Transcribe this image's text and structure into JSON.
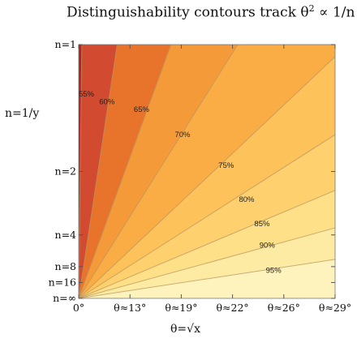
{
  "chart_data": {
    "type": "contour",
    "title_main": "Distinguishability contours track θ",
    "title_sup": "2",
    "title_tail": " ∝ 1/n",
    "xlabel": "θ=√x",
    "ylabel": "n=1/y",
    "x_ticks": [
      {
        "value": 0.0,
        "label": "0°"
      },
      {
        "value": 0.2,
        "label": "θ≈13°"
      },
      {
        "value": 0.4,
        "label": "θ≈19°"
      },
      {
        "value": 0.6,
        "label": "θ≈22°"
      },
      {
        "value": 0.8,
        "label": "θ≈26°"
      },
      {
        "value": 1.0,
        "label": "θ≈29°"
      }
    ],
    "y_ticks": [
      {
        "value": 1.0,
        "label": "n=1"
      },
      {
        "value": 0.5,
        "label": "n=2"
      },
      {
        "value": 0.25,
        "label": "n=4"
      },
      {
        "value": 0.125,
        "label": "n=8"
      },
      {
        "value": 0.0625,
        "label": "n=16"
      },
      {
        "value": 0.0,
        "label": "n=∞"
      }
    ],
    "xlim": [
      0,
      1
    ],
    "ylim": [
      0,
      1
    ],
    "contour_levels": [
      {
        "level": "55%",
        "ratio": 0.012,
        "color": "#d24a30"
      },
      {
        "level": "60%",
        "ratio": 0.15,
        "color": "#e8742c"
      },
      {
        "level": "65%",
        "ratio": 0.36,
        "color": "#f59a38"
      },
      {
        "level": "70%",
        "ratio": 0.62,
        "color": "#fbad45"
      },
      {
        "level": "75%",
        "ratio": 1.05,
        "color": "#fdc25a"
      },
      {
        "level": "80%",
        "ratio": 1.55,
        "color": "#fed06e"
      },
      {
        "level": "85%",
        "ratio": 2.35,
        "color": "#fee088"
      },
      {
        "level": "90%",
        "ratio": 3.6,
        "color": "#feeba3"
      },
      {
        "level": "95%",
        "ratio": 6.5,
        "color": "#fff3bd"
      }
    ],
    "base_color": "#b22020",
    "top_color": "#fff8d0",
    "contour_label_points": [
      {
        "level": "55%",
        "x": 0.03,
        "y": 0.795
      },
      {
        "level": "60%",
        "x": 0.11,
        "y": 0.765
      },
      {
        "level": "65%",
        "x": 0.245,
        "y": 0.735
      },
      {
        "level": "70%",
        "x": 0.405,
        "y": 0.635
      },
      {
        "level": "75%",
        "x": 0.575,
        "y": 0.515
      },
      {
        "level": "80%",
        "x": 0.655,
        "y": 0.38
      },
      {
        "level": "85%",
        "x": 0.715,
        "y": 0.285
      },
      {
        "level": "90%",
        "x": 0.735,
        "y": 0.2
      },
      {
        "level": "95%",
        "x": 0.76,
        "y": 0.1
      }
    ]
  }
}
